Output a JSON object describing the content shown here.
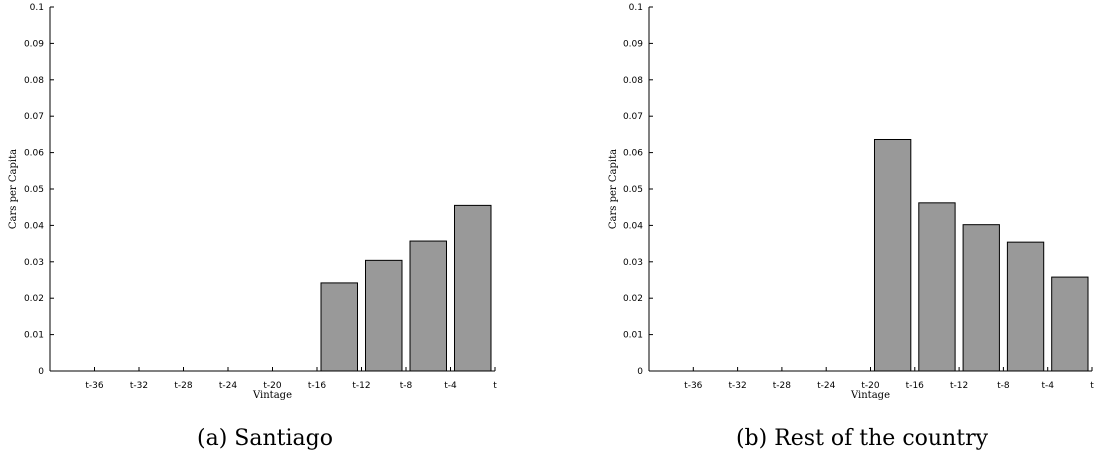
{
  "chart_data": [
    {
      "type": "bar",
      "caption": "(a) Santiago",
      "xlabel": "Vintage",
      "ylabel": "Cars per Capita",
      "ylim": [
        0,
        0.1
      ],
      "yticks": [
        "0",
        "0.01",
        "0.02",
        "0.03",
        "0.04",
        "0.05",
        "0.06",
        "0.07",
        "0.08",
        "0.09",
        "0.1"
      ],
      "xlim": [
        -40,
        0
      ],
      "xticks": [
        {
          "label": "t-36",
          "value": -36
        },
        {
          "label": "t-32",
          "value": -32
        },
        {
          "label": "t-28",
          "value": -28
        },
        {
          "label": "t-24",
          "value": -24
        },
        {
          "label": "t-20",
          "value": -20
        },
        {
          "label": "t-16",
          "value": -16
        },
        {
          "label": "t-12",
          "value": -12
        },
        {
          "label": "t-8",
          "value": -8
        },
        {
          "label": "t-4",
          "value": -4
        },
        {
          "label": "t",
          "value": 0
        }
      ],
      "bars": [
        {
          "x": -38,
          "value": 0
        },
        {
          "x": -34,
          "value": 0
        },
        {
          "x": -30,
          "value": 0
        },
        {
          "x": -26,
          "value": 0
        },
        {
          "x": -22,
          "value": 0
        },
        {
          "x": -18,
          "value": 0
        },
        {
          "x": -14,
          "value": 0.0242
        },
        {
          "x": -10,
          "value": 0.0304
        },
        {
          "x": -6,
          "value": 0.0357
        },
        {
          "x": -2,
          "value": 0.0455
        }
      ],
      "bar_color": "#999999"
    },
    {
      "type": "bar",
      "caption": "(b) Rest of the country",
      "xlabel": "Vintage",
      "ylabel": "Cars per Capita",
      "ylim": [
        0,
        0.1
      ],
      "yticks": [
        "0",
        "0.01",
        "0.02",
        "0.03",
        "0.04",
        "0.05",
        "0.06",
        "0.07",
        "0.08",
        "0.09",
        "0.1"
      ],
      "xlim": [
        -40,
        0
      ],
      "xticks": [
        {
          "label": "t-36",
          "value": -36
        },
        {
          "label": "t-32",
          "value": -32
        },
        {
          "label": "t-28",
          "value": -28
        },
        {
          "label": "t-24",
          "value": -24
        },
        {
          "label": "t-20",
          "value": -20
        },
        {
          "label": "t-16",
          "value": -16
        },
        {
          "label": "t-12",
          "value": -12
        },
        {
          "label": "t-8",
          "value": -8
        },
        {
          "label": "t-4",
          "value": -4
        },
        {
          "label": "t",
          "value": 0
        }
      ],
      "bars": [
        {
          "x": -38,
          "value": 0
        },
        {
          "x": -34,
          "value": 0
        },
        {
          "x": -30,
          "value": 0
        },
        {
          "x": -26,
          "value": 0
        },
        {
          "x": -22,
          "value": 0
        },
        {
          "x": -18,
          "value": 0.0636
        },
        {
          "x": -14,
          "value": 0.0462
        },
        {
          "x": -10,
          "value": 0.0402
        },
        {
          "x": -6,
          "value": 0.0354
        },
        {
          "x": -2,
          "value": 0.0258
        }
      ],
      "bar_color": "#999999"
    }
  ]
}
